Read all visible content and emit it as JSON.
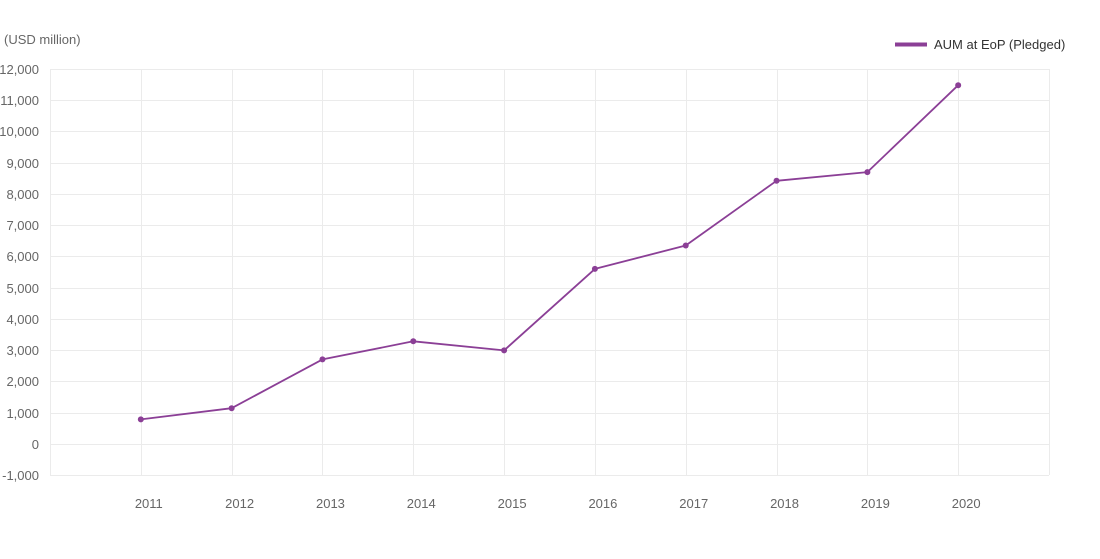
{
  "chart_data": {
    "type": "line",
    "ylabel": "(USD million)",
    "categories": [
      "2011",
      "2012",
      "2013",
      "2014",
      "2015",
      "2016",
      "2017",
      "2018",
      "2019",
      "2020"
    ],
    "series": [
      {
        "name": "AUM at EoP (Pledged)",
        "color": "#8b3f96",
        "values": [
          780,
          1140,
          2700,
          3280,
          2990,
          5600,
          6350,
          8420,
          8700,
          11480
        ]
      }
    ],
    "ylim": [
      -1000,
      12000
    ],
    "yticks": [
      -1000,
      0,
      1000,
      2000,
      3000,
      4000,
      5000,
      6000,
      7000,
      8000,
      9000,
      10000,
      11000,
      12000
    ],
    "ytick_labels": [
      "-1,000",
      "0",
      "1,000",
      "2,000",
      "3,000",
      "4,000",
      "5,000",
      "6,000",
      "7,000",
      "8,000",
      "9,000",
      "10,000",
      "11,000",
      "12,000"
    ],
    "grid": true,
    "legend_position": "top-right"
  }
}
